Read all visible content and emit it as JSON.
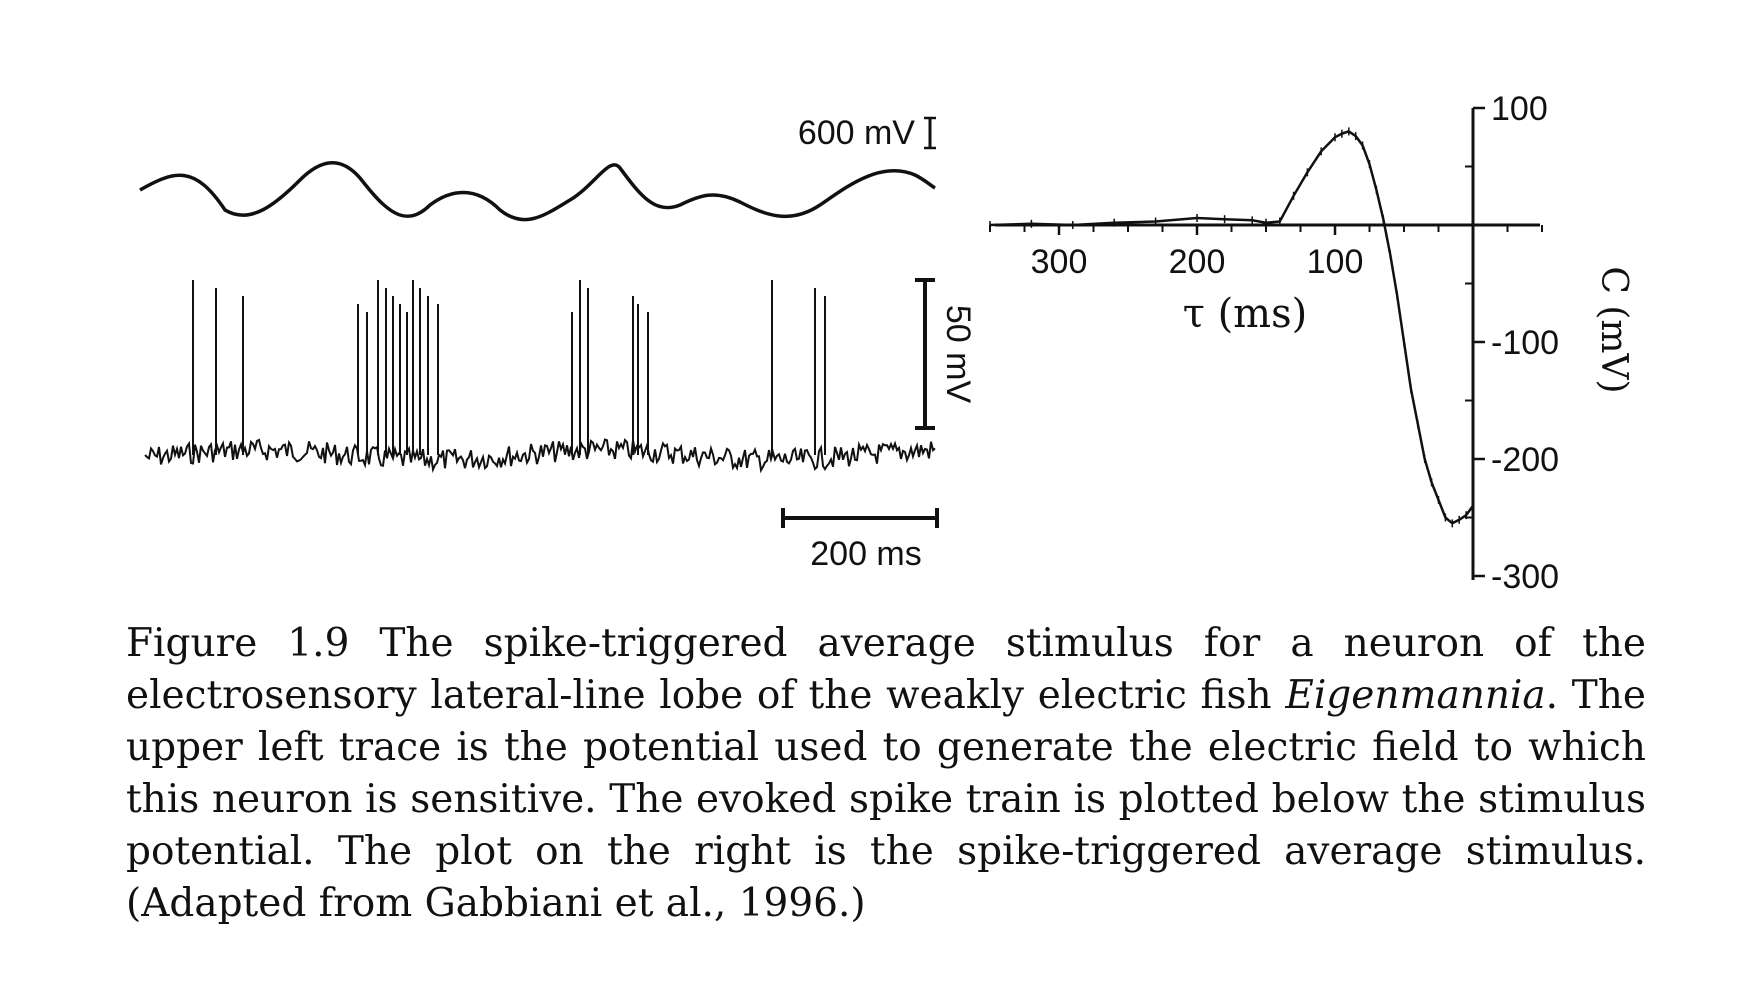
{
  "figure": {
    "stimulus_scale_label": "600 mV",
    "spike_scale_label": "50 mV",
    "time_scale_label": "200 ms"
  },
  "chart_data": {
    "type": "line",
    "title": "",
    "xlabel": "τ (ms)",
    "ylabel": "C (mV)",
    "x_ticks": [
      300,
      200,
      100
    ],
    "y_ticks": [
      100,
      -100,
      -200,
      -300
    ],
    "x_reversed": true,
    "xlim": [
      350,
      -55
    ],
    "ylim": [
      -300,
      100
    ],
    "grid": false,
    "series": [
      {
        "x": [
          350,
          320,
          290,
          260,
          230,
          200,
          180,
          160,
          150,
          140,
          130,
          120,
          110,
          100,
          95,
          90,
          85,
          80,
          75,
          70,
          65,
          60,
          55,
          50,
          45,
          40,
          35,
          30,
          25,
          20,
          15,
          10,
          5,
          0
        ],
        "y": [
          0,
          1,
          0,
          2,
          3,
          6,
          5,
          4,
          2,
          3,
          25,
          45,
          63,
          75,
          78,
          80,
          76,
          68,
          52,
          30,
          5,
          -25,
          -60,
          -100,
          -140,
          -170,
          -200,
          -220,
          -235,
          -250,
          -255,
          -252,
          -248,
          -240
        ]
      }
    ]
  },
  "caption": {
    "part1": "Figure 1.9 The spike-triggered average stimulus for a neuron of the electrosensory lateral-line lobe of the weakly electric fish ",
    "species": "Eigenmannia",
    "part2": ". The upper left trace is the potential used to generate the electric field to which this neuron is sensitive. The evoked spike train is plotted below the stimulus potential. The plot on the right is the spike-triggered average stimulus. (Adapted from Gabbiani et al., 1996.)"
  }
}
